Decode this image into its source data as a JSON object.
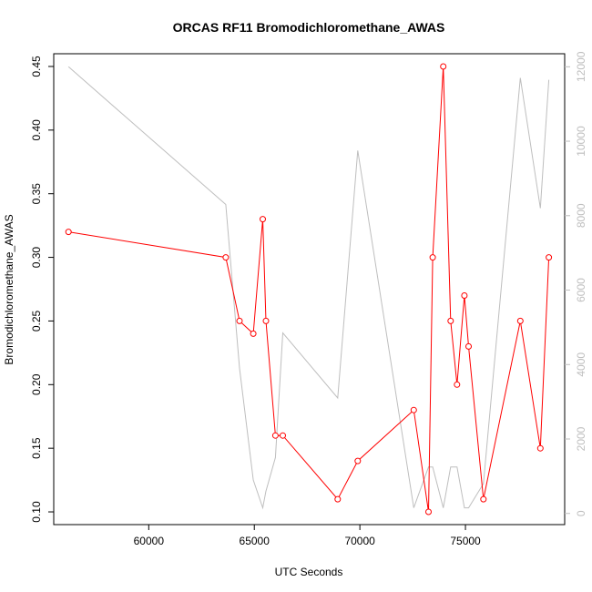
{
  "chart_data": {
    "type": "line",
    "title": "ORCAS RF11 Bromodichloromethane_AWAS",
    "xlabel": "UTC Seconds",
    "ylabel": "Bromodichloromethane_AWAS",
    "xlim": [
      55500,
      79700
    ],
    "ylim": [
      0.09,
      0.46
    ],
    "y2lim": [
      -300,
      12350
    ],
    "x_ticks": [
      60000,
      65000,
      70000,
      75000
    ],
    "y_ticks": [
      0.1,
      0.15,
      0.2,
      0.25,
      0.3,
      0.35,
      0.4,
      0.45
    ],
    "y_tick_labels": [
      "0.10",
      "0.15",
      "0.20",
      "0.25",
      "0.30",
      "0.35",
      "0.40",
      "0.45"
    ],
    "y2_ticks": [
      0,
      2000,
      4000,
      6000,
      8000,
      10000,
      12000
    ],
    "grid": false,
    "series": [
      {
        "color": "#ff0000",
        "axis": "left",
        "markers": "open-circle",
        "x": [
          56200,
          63650,
          64300,
          64950,
          65400,
          65550,
          66000,
          66350,
          68950,
          69900,
          72550,
          73250,
          73450,
          73950,
          74300,
          74600,
          74950,
          75150,
          75850,
          77600,
          78550,
          78950
        ],
        "y": [
          0.32,
          0.3,
          0.25,
          0.24,
          0.33,
          0.25,
          0.16,
          0.16,
          0.11,
          0.14,
          0.18,
          0.1,
          0.3,
          0.45,
          0.25,
          0.2,
          0.27,
          0.23,
          0.11,
          0.25,
          0.15,
          0.3
        ]
      },
      {
        "color": "#bebebe",
        "axis": "right",
        "markers": "none",
        "x": [
          56200,
          63650,
          64300,
          64950,
          65400,
          65550,
          66000,
          66350,
          68950,
          69900,
          72550,
          73250,
          73450,
          73950,
          74300,
          74600,
          74950,
          75150,
          75850,
          77600,
          78550,
          78950
        ],
        "y": [
          12000,
          8300,
          3900,
          900,
          150,
          600,
          1500,
          4850,
          3100,
          9750,
          150,
          1250,
          1250,
          150,
          1250,
          1250,
          150,
          150,
          800,
          11700,
          8200,
          11650
        ]
      }
    ]
  }
}
